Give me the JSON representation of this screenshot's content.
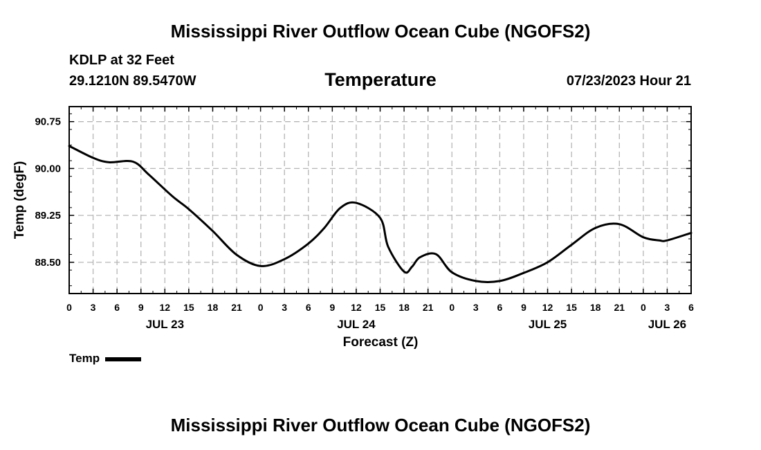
{
  "header": {
    "title": "Mississippi River Outflow Ocean Cube (NGOFS2)",
    "station": "KDLP at 32 Feet",
    "coords": "29.1210N  89.5470W",
    "subtitle": "Temperature",
    "datetime": "07/23/2023 Hour 21"
  },
  "footer": {
    "title": "Mississippi River Outflow Ocean Cube (NGOFS2)"
  },
  "legend": {
    "label": "Temp"
  },
  "chart_data": {
    "type": "line",
    "title": "Temperature",
    "xlabel": "Forecast (Z)",
    "ylabel": "Temp (degF)",
    "xlim": [
      0,
      78
    ],
    "ylim": [
      88.0,
      90.99
    ],
    "grid": true,
    "x_ticks": [
      0,
      3,
      6,
      9,
      12,
      15,
      18,
      21,
      24,
      27,
      30,
      33,
      36,
      39,
      42,
      45,
      48,
      51,
      54,
      57,
      60,
      63,
      66,
      69,
      72,
      75,
      78
    ],
    "x_tick_labels": [
      "0",
      "3",
      "6",
      "9",
      "12",
      "15",
      "18",
      "21",
      "0",
      "3",
      "6",
      "9",
      "12",
      "15",
      "18",
      "21",
      "0",
      "3",
      "6",
      "9",
      "12",
      "15",
      "18",
      "21",
      "0",
      "3",
      "6"
    ],
    "date_labels": [
      {
        "label": "JUL 23",
        "x": 12
      },
      {
        "label": "JUL 24",
        "x": 36
      },
      {
        "label": "JUL 25",
        "x": 60
      },
      {
        "label": "JUL 26",
        "x": 75
      }
    ],
    "y_ticks": [
      88.5,
      89.25,
      90.0,
      90.75
    ],
    "y_tick_labels": [
      "88.50",
      "89.25",
      "90.00",
      "90.75"
    ],
    "series": [
      {
        "name": "Temp",
        "x": [
          0,
          3,
          5,
          8,
          10,
          13,
          15,
          18,
          21,
          24,
          27,
          30,
          32,
          34,
          36,
          39,
          40,
          42,
          43,
          44,
          46,
          48,
          51,
          54,
          57,
          60,
          63,
          66,
          69,
          72,
          74,
          75,
          78
        ],
        "y": [
          90.36,
          90.17,
          90.1,
          90.11,
          89.9,
          89.55,
          89.35,
          89.0,
          88.62,
          88.44,
          88.55,
          88.8,
          89.05,
          89.37,
          89.45,
          89.21,
          88.75,
          88.35,
          88.43,
          88.58,
          88.63,
          88.34,
          88.2,
          88.2,
          88.33,
          88.5,
          88.78,
          89.05,
          89.11,
          88.9,
          88.85,
          88.85,
          88.97
        ]
      }
    ]
  }
}
